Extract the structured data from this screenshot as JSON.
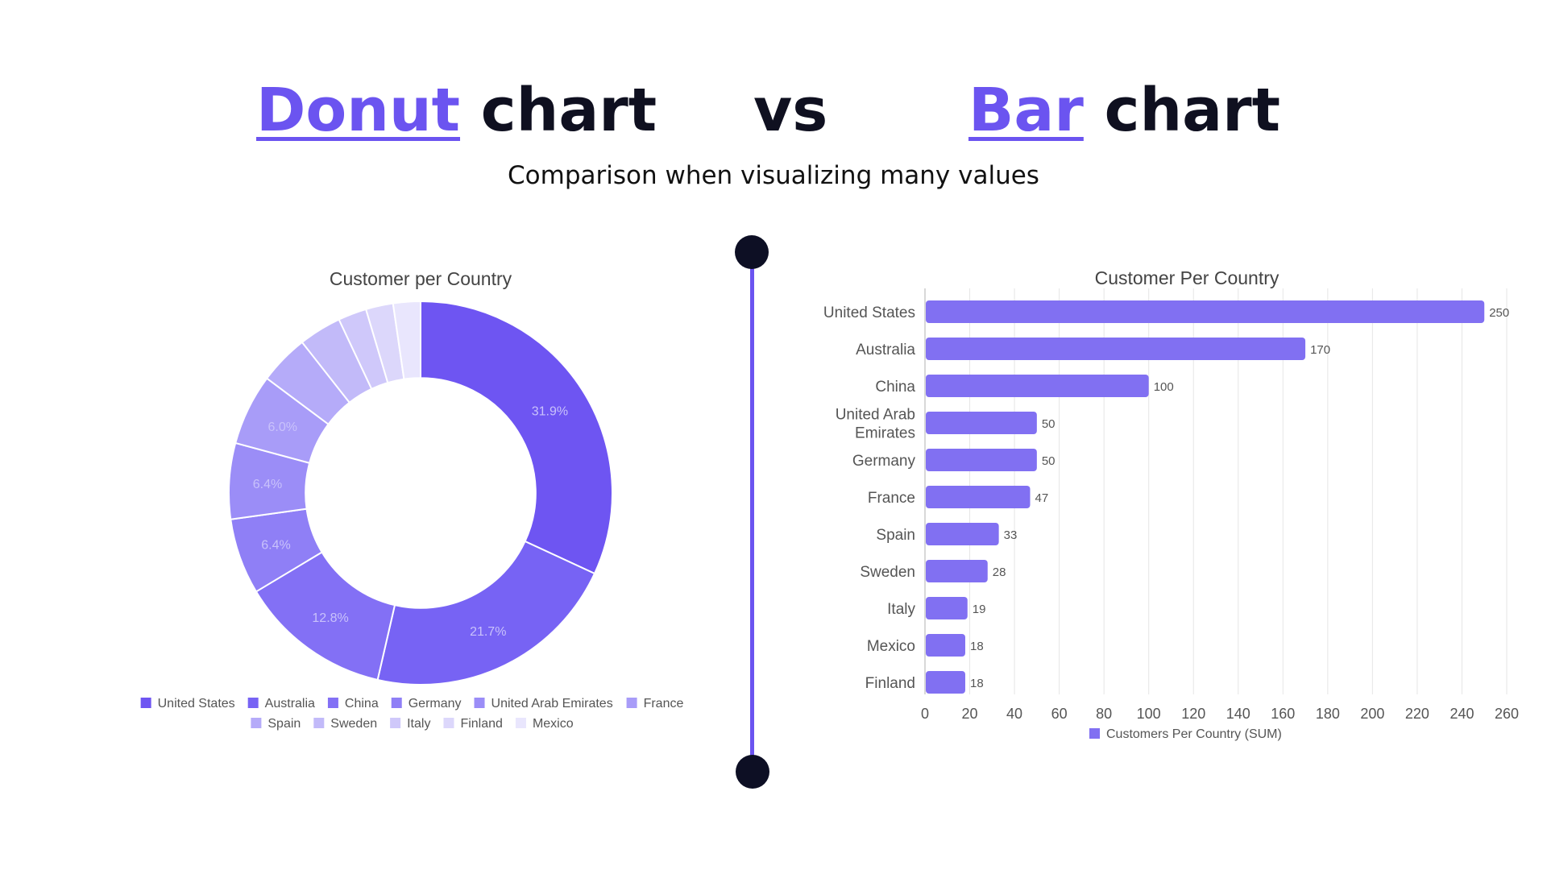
{
  "header": {
    "left_accent": "Donut",
    "left_rest": " chart",
    "vs": "vs",
    "right_accent": "Bar",
    "right_rest": " chart",
    "subtitle": "Comparison when visualizing many values"
  },
  "colors": {
    "accent": "#6b54f0",
    "dark": "#0d0f24"
  },
  "chart_data": [
    {
      "type": "pie",
      "title": "Customer per Country",
      "hole": 0.6,
      "categories": [
        "United States",
        "Australia",
        "China",
        "Germany",
        "United Arab Emirates",
        "France",
        "Spain",
        "Sweden",
        "Italy",
        "Finland",
        "Mexico"
      ],
      "values": [
        31.9,
        21.7,
        12.8,
        6.4,
        6.4,
        6.0,
        4.2,
        3.6,
        2.4,
        2.3,
        2.3
      ],
      "data_labels": [
        "31.9%",
        "21.7%",
        "12.8%",
        "6.4%",
        "6.4%",
        "6.0%",
        "",
        "",
        "",
        "",
        ""
      ],
      "colors": [
        "#6e55f2",
        "#7763f4",
        "#8370f5",
        "#8f7ff6",
        "#9b8df7",
        "#a89cf8",
        "#b5abf9",
        "#c2baf9",
        "#cfc8fa",
        "#dcd7fb",
        "#e9e6fd"
      ],
      "legend": "bottom"
    },
    {
      "type": "bar",
      "orientation": "horizontal",
      "title": "Customer Per Country",
      "categories": [
        "United States",
        "Australia",
        "China",
        "United Arab Emirates",
        "Germany",
        "France",
        "Spain",
        "Sweden",
        "Italy",
        "Mexico",
        "Finland"
      ],
      "category_lines": [
        [
          "United States"
        ],
        [
          "Australia"
        ],
        [
          "China"
        ],
        [
          "United Arab",
          "Emirates"
        ],
        [
          "Germany"
        ],
        [
          "France"
        ],
        [
          "Spain"
        ],
        [
          "Sweden"
        ],
        [
          "Italy"
        ],
        [
          "Mexico"
        ],
        [
          "Finland"
        ]
      ],
      "series": [
        {
          "name": "Customers Per Country (SUM)",
          "values": [
            250,
            170,
            100,
            50,
            50,
            47,
            33,
            28,
            19,
            18,
            18
          ]
        }
      ],
      "xlim": [
        0,
        260
      ],
      "xticks": [
        0,
        20,
        40,
        60,
        80,
        100,
        120,
        140,
        160,
        180,
        200,
        220,
        240,
        260
      ],
      "grid": true,
      "bar_color": "#8170f2",
      "legend": "bottom"
    }
  ]
}
